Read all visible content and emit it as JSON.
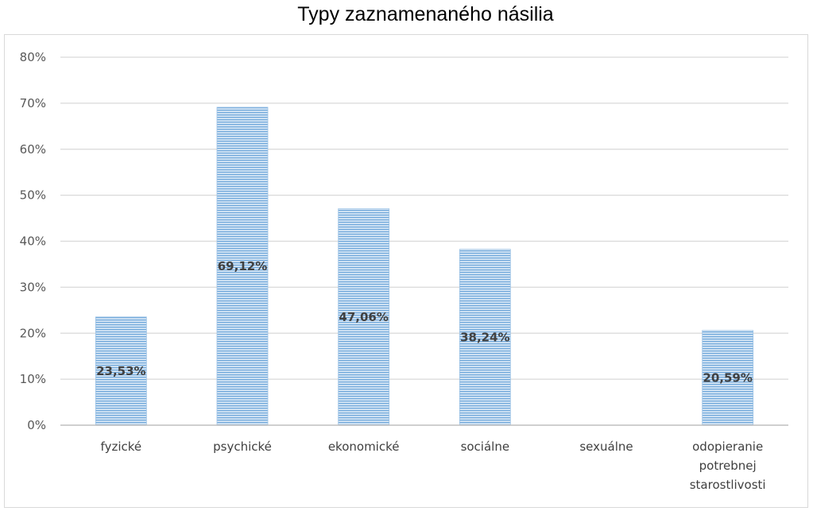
{
  "chart_data": {
    "type": "bar",
    "title": "Typy zaznamenaného násilia",
    "xlabel": "",
    "ylabel": "",
    "categories": [
      [
        "fyzické"
      ],
      [
        "psychické"
      ],
      [
        "ekonomické"
      ],
      [
        "sociálne"
      ],
      [
        "sexuálne"
      ],
      [
        "odopieranie",
        "potrebnej",
        "starostlivosti"
      ]
    ],
    "values": [
      23.53,
      69.12,
      47.06,
      38.24,
      0,
      20.59
    ],
    "data_labels": [
      "23,53%",
      "69,12%",
      "47,06%",
      "38,24%",
      "",
      "20,59%"
    ],
    "ylim": [
      0,
      80
    ],
    "yticks": [
      0,
      10,
      20,
      30,
      40,
      50,
      60,
      70,
      80
    ],
    "ytick_labels": [
      "0%",
      "10%",
      "20%",
      "30%",
      "40%",
      "50%",
      "60%",
      "70%",
      "80%"
    ],
    "grid": true,
    "legend": "none",
    "colors": {
      "bar_fill": "#9dc3e6",
      "bar_stripe": "#5b9bd5",
      "grid": "#d9d9d9",
      "axis": "#bfbfbf"
    }
  }
}
